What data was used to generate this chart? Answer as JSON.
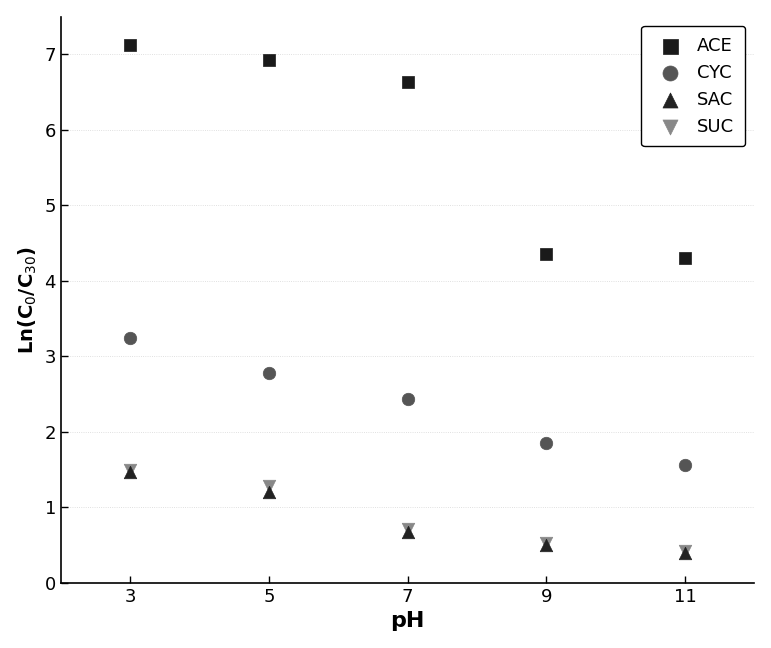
{
  "series": {
    "ACE": {
      "x": [
        3,
        5,
        7,
        9,
        11
      ],
      "y": [
        7.12,
        6.93,
        6.63,
        4.35,
        4.3
      ],
      "marker": "s",
      "color": "#1a1a1a",
      "label": "ACE",
      "markersize": 9,
      "zorder": 4
    },
    "CYC": {
      "x": [
        3,
        5,
        7,
        9,
        11
      ],
      "y": [
        3.25,
        2.78,
        2.43,
        1.85,
        1.56
      ],
      "marker": "o",
      "color": "#555555",
      "label": "CYC",
      "markersize": 9,
      "zorder": 4
    },
    "SAC": {
      "x": [
        3,
        5,
        7,
        9,
        11
      ],
      "y": [
        1.47,
        1.2,
        0.68,
        0.5,
        0.4
      ],
      "marker": "^",
      "color": "#222222",
      "label": "SAC",
      "markersize": 9,
      "zorder": 5
    },
    "SUC": {
      "x": [
        3,
        5,
        7,
        9,
        11
      ],
      "y": [
        1.5,
        1.28,
        0.72,
        0.53,
        0.42
      ],
      "marker": "v",
      "color": "#888888",
      "label": "SUC",
      "markersize": 9,
      "zorder": 3
    }
  },
  "xlabel": "pH",
  "xlim": [
    2,
    12
  ],
  "ylim": [
    0,
    7.5
  ],
  "xticks": [
    3,
    5,
    7,
    9,
    11
  ],
  "yticks": [
    0,
    1,
    2,
    3,
    4,
    5,
    6,
    7
  ],
  "legend_loc": "upper right",
  "background_color": "#ffffff",
  "plot_bg_color": "#ffffff",
  "xlabel_fontsize": 16,
  "ylabel_fontsize": 14,
  "tick_fontsize": 13,
  "legend_fontsize": 13
}
